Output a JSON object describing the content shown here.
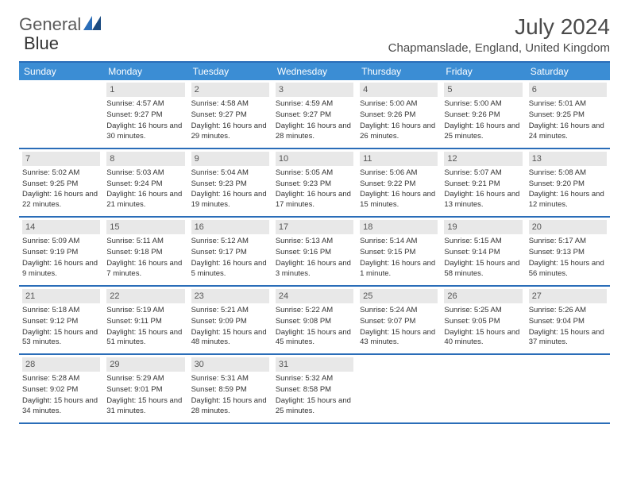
{
  "brand": {
    "part1": "General",
    "part2": "Blue"
  },
  "title": "July 2024",
  "location": "Chapmanslade, England, United Kingdom",
  "colors": {
    "header_bg": "#3b8dd4",
    "border": "#2a6db8",
    "daynum_bg": "#e8e8e8"
  },
  "dayHeaders": [
    "Sunday",
    "Monday",
    "Tuesday",
    "Wednesday",
    "Thursday",
    "Friday",
    "Saturday"
  ],
  "weeks": [
    [
      null,
      {
        "n": "1",
        "sr": "Sunrise: 4:57 AM",
        "ss": "Sunset: 9:27 PM",
        "dl": "Daylight: 16 hours and 30 minutes."
      },
      {
        "n": "2",
        "sr": "Sunrise: 4:58 AM",
        "ss": "Sunset: 9:27 PM",
        "dl": "Daylight: 16 hours and 29 minutes."
      },
      {
        "n": "3",
        "sr": "Sunrise: 4:59 AM",
        "ss": "Sunset: 9:27 PM",
        "dl": "Daylight: 16 hours and 28 minutes."
      },
      {
        "n": "4",
        "sr": "Sunrise: 5:00 AM",
        "ss": "Sunset: 9:26 PM",
        "dl": "Daylight: 16 hours and 26 minutes."
      },
      {
        "n": "5",
        "sr": "Sunrise: 5:00 AM",
        "ss": "Sunset: 9:26 PM",
        "dl": "Daylight: 16 hours and 25 minutes."
      },
      {
        "n": "6",
        "sr": "Sunrise: 5:01 AM",
        "ss": "Sunset: 9:25 PM",
        "dl": "Daylight: 16 hours and 24 minutes."
      }
    ],
    [
      {
        "n": "7",
        "sr": "Sunrise: 5:02 AM",
        "ss": "Sunset: 9:25 PM",
        "dl": "Daylight: 16 hours and 22 minutes."
      },
      {
        "n": "8",
        "sr": "Sunrise: 5:03 AM",
        "ss": "Sunset: 9:24 PM",
        "dl": "Daylight: 16 hours and 21 minutes."
      },
      {
        "n": "9",
        "sr": "Sunrise: 5:04 AM",
        "ss": "Sunset: 9:23 PM",
        "dl": "Daylight: 16 hours and 19 minutes."
      },
      {
        "n": "10",
        "sr": "Sunrise: 5:05 AM",
        "ss": "Sunset: 9:23 PM",
        "dl": "Daylight: 16 hours and 17 minutes."
      },
      {
        "n": "11",
        "sr": "Sunrise: 5:06 AM",
        "ss": "Sunset: 9:22 PM",
        "dl": "Daylight: 16 hours and 15 minutes."
      },
      {
        "n": "12",
        "sr": "Sunrise: 5:07 AM",
        "ss": "Sunset: 9:21 PM",
        "dl": "Daylight: 16 hours and 13 minutes."
      },
      {
        "n": "13",
        "sr": "Sunrise: 5:08 AM",
        "ss": "Sunset: 9:20 PM",
        "dl": "Daylight: 16 hours and 12 minutes."
      }
    ],
    [
      {
        "n": "14",
        "sr": "Sunrise: 5:09 AM",
        "ss": "Sunset: 9:19 PM",
        "dl": "Daylight: 16 hours and 9 minutes."
      },
      {
        "n": "15",
        "sr": "Sunrise: 5:11 AM",
        "ss": "Sunset: 9:18 PM",
        "dl": "Daylight: 16 hours and 7 minutes."
      },
      {
        "n": "16",
        "sr": "Sunrise: 5:12 AM",
        "ss": "Sunset: 9:17 PM",
        "dl": "Daylight: 16 hours and 5 minutes."
      },
      {
        "n": "17",
        "sr": "Sunrise: 5:13 AM",
        "ss": "Sunset: 9:16 PM",
        "dl": "Daylight: 16 hours and 3 minutes."
      },
      {
        "n": "18",
        "sr": "Sunrise: 5:14 AM",
        "ss": "Sunset: 9:15 PM",
        "dl": "Daylight: 16 hours and 1 minute."
      },
      {
        "n": "19",
        "sr": "Sunrise: 5:15 AM",
        "ss": "Sunset: 9:14 PM",
        "dl": "Daylight: 15 hours and 58 minutes."
      },
      {
        "n": "20",
        "sr": "Sunrise: 5:17 AM",
        "ss": "Sunset: 9:13 PM",
        "dl": "Daylight: 15 hours and 56 minutes."
      }
    ],
    [
      {
        "n": "21",
        "sr": "Sunrise: 5:18 AM",
        "ss": "Sunset: 9:12 PM",
        "dl": "Daylight: 15 hours and 53 minutes."
      },
      {
        "n": "22",
        "sr": "Sunrise: 5:19 AM",
        "ss": "Sunset: 9:11 PM",
        "dl": "Daylight: 15 hours and 51 minutes."
      },
      {
        "n": "23",
        "sr": "Sunrise: 5:21 AM",
        "ss": "Sunset: 9:09 PM",
        "dl": "Daylight: 15 hours and 48 minutes."
      },
      {
        "n": "24",
        "sr": "Sunrise: 5:22 AM",
        "ss": "Sunset: 9:08 PM",
        "dl": "Daylight: 15 hours and 45 minutes."
      },
      {
        "n": "25",
        "sr": "Sunrise: 5:24 AM",
        "ss": "Sunset: 9:07 PM",
        "dl": "Daylight: 15 hours and 43 minutes."
      },
      {
        "n": "26",
        "sr": "Sunrise: 5:25 AM",
        "ss": "Sunset: 9:05 PM",
        "dl": "Daylight: 15 hours and 40 minutes."
      },
      {
        "n": "27",
        "sr": "Sunrise: 5:26 AM",
        "ss": "Sunset: 9:04 PM",
        "dl": "Daylight: 15 hours and 37 minutes."
      }
    ],
    [
      {
        "n": "28",
        "sr": "Sunrise: 5:28 AM",
        "ss": "Sunset: 9:02 PM",
        "dl": "Daylight: 15 hours and 34 minutes."
      },
      {
        "n": "29",
        "sr": "Sunrise: 5:29 AM",
        "ss": "Sunset: 9:01 PM",
        "dl": "Daylight: 15 hours and 31 minutes."
      },
      {
        "n": "30",
        "sr": "Sunrise: 5:31 AM",
        "ss": "Sunset: 8:59 PM",
        "dl": "Daylight: 15 hours and 28 minutes."
      },
      {
        "n": "31",
        "sr": "Sunrise: 5:32 AM",
        "ss": "Sunset: 8:58 PM",
        "dl": "Daylight: 15 hours and 25 minutes."
      },
      null,
      null,
      null
    ]
  ]
}
